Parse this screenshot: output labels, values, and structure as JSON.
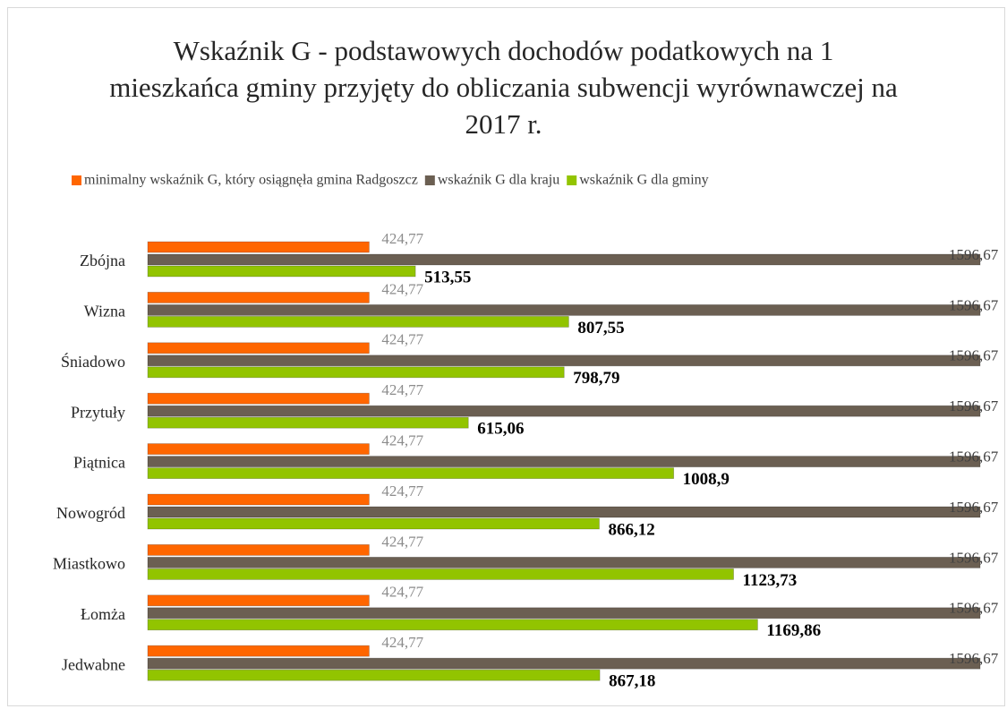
{
  "chart_data": {
    "type": "bar",
    "orientation": "horizontal",
    "title": "Wskaźnik G - podstawowych dochodów podatkowych  na 1 mieszkańca gminy przyjęty do obliczania subwencji wyrównawczej na 2017 r.",
    "legend": "top",
    "categories": [
      "Zbójna",
      "Wizna",
      "Śniadowo",
      "Przytuły",
      "Piątnica",
      "Nowogród",
      "Miastkowo",
      "Łomża",
      "Jedwabne"
    ],
    "series": [
      {
        "name": "minimalny wskaźnik G, który osiągnęła gmina Radgoszcz",
        "color": "#ff6600",
        "values": [
          424.77,
          424.77,
          424.77,
          424.77,
          424.77,
          424.77,
          424.77,
          424.77,
          424.77
        ],
        "value_labels": [
          "424,77",
          "424,77",
          "424,77",
          "424,77",
          "424,77",
          "424,77",
          "424,77",
          "424,77",
          "424,77"
        ]
      },
      {
        "name": "wskaźnik G dla kraju",
        "color": "#6b5f52",
        "values": [
          1596.67,
          1596.67,
          1596.67,
          1596.67,
          1596.67,
          1596.67,
          1596.67,
          1596.67,
          1596.67
        ],
        "value_labels": [
          "1596,67",
          "1596,67",
          "1596,67",
          "1596,67",
          "1596,67",
          "1596,67",
          "1596,67",
          "1596,67",
          "1596,67"
        ]
      },
      {
        "name": "wskaźnik G dla gminy",
        "color": "#92c400",
        "values": [
          513.55,
          807.55,
          798.79,
          615.06,
          1008.9,
          866.12,
          1123.73,
          1169.86,
          867.18
        ],
        "value_labels": [
          "513,55",
          "807,55",
          "798,79",
          "615,06",
          "1008,9",
          "866,12",
          "1123,73",
          "1169,86",
          "867,18"
        ]
      }
    ]
  }
}
